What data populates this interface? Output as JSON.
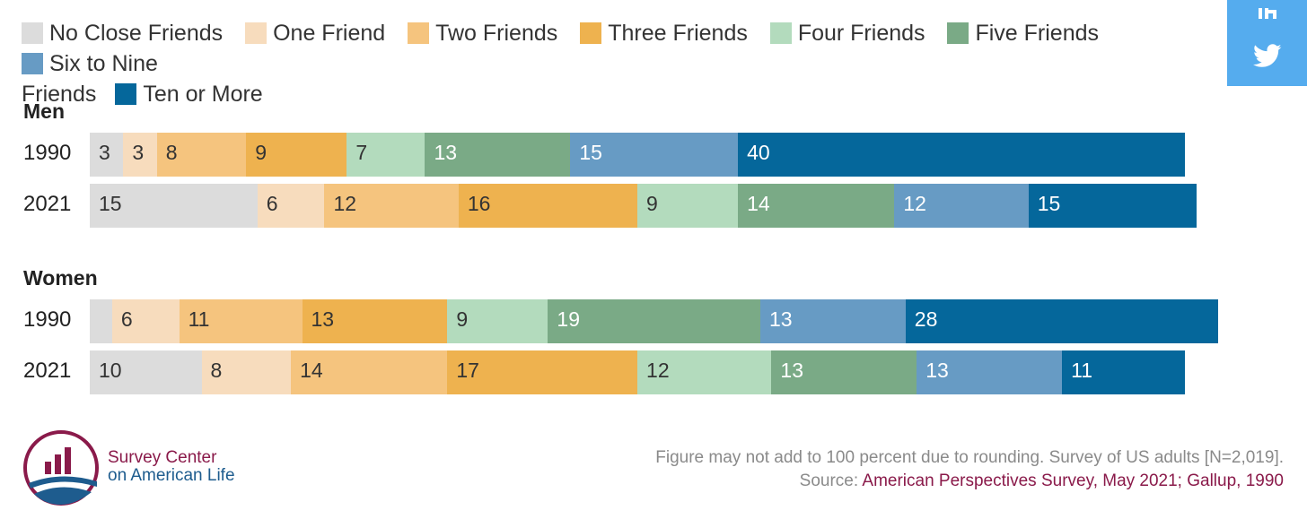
{
  "chart_data": {
    "type": "bar",
    "stacked": true,
    "orientation": "horizontal",
    "categories": [
      "No Close Friends",
      "One Friend",
      "Two Friends",
      "Three Friends",
      "Four Friends",
      "Five Friends",
      "Six to Nine Friends",
      "Ten or More"
    ],
    "colors": [
      "#dcdcdc",
      "#f7dcbd",
      "#f5c47e",
      "#eeb24f",
      "#b3dbbd",
      "#7aaa86",
      "#679bc4",
      "#05679b"
    ],
    "label_colors": [
      "#333333",
      "#333333",
      "#333333",
      "#333333",
      "#333333",
      "#ffffff",
      "#ffffff",
      "#ffffff"
    ],
    "groups": [
      {
        "title": "Men",
        "rows": [
          {
            "year": "1990",
            "values": [
              3,
              3,
              8,
              9,
              7,
              13,
              15,
              40
            ]
          },
          {
            "year": "2021",
            "values": [
              15,
              6,
              12,
              16,
              9,
              14,
              12,
              15
            ]
          }
        ]
      },
      {
        "title": "Women",
        "rows": [
          {
            "year": "1990",
            "values": [
              2,
              6,
              11,
              13,
              9,
              19,
              13,
              28
            ],
            "hidden_labels": [
              0
            ]
          },
          {
            "year": "2021",
            "values": [
              10,
              8,
              14,
              17,
              12,
              13,
              13,
              11
            ]
          }
        ]
      }
    ]
  },
  "legend": {
    "items": [
      {
        "label": "No Close Friends",
        "color": "#dcdcdc"
      },
      {
        "label": "One Friend",
        "color": "#f7dcbd"
      },
      {
        "label": "Two Friends",
        "color": "#f5c47e"
      },
      {
        "label": "Three Friends",
        "color": "#eeb24f"
      },
      {
        "label": "Four Friends",
        "color": "#b3dbbd"
      },
      {
        "label": "Five Friends",
        "color": "#7aaa86"
      },
      {
        "label": "Six to Nine",
        "color": "#679bc4"
      },
      {
        "label": "Ten or More",
        "color": "#05679b"
      }
    ],
    "wrap_text": "Friends"
  },
  "share": {
    "linkedin_icon": "linkedin-icon",
    "twitter_icon": "twitter-icon",
    "color": "#55acee"
  },
  "logo": {
    "line1": "Survey Center",
    "line2": "on American Life",
    "icon": "survey-center-logo"
  },
  "footnote": {
    "note": "Figure may not add to 100 percent due to rounding. Survey of US adults [N=2,019].",
    "source_label": "Source:",
    "source_text": "American Perspectives Survey, May 2021; Gallup, 1990"
  }
}
